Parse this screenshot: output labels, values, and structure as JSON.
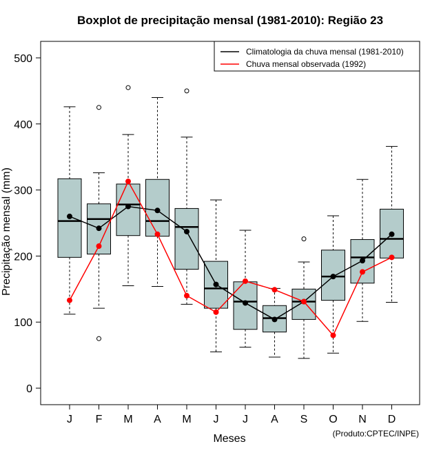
{
  "chart_data": {
    "type": "boxplot",
    "title": "Boxplot de precipitação mensal (1981-2010): Região 23",
    "xlabel": "Meses",
    "ylabel": "Precipitação mensal (mm)",
    "ylim": [
      -25,
      525
    ],
    "yticks": [
      0,
      100,
      200,
      300,
      400,
      500
    ],
    "categories": [
      "J",
      "F",
      "M",
      "A",
      "M",
      "J",
      "J",
      "A",
      "S",
      "O",
      "N",
      "D"
    ],
    "boxes": [
      {
        "whisker_low": 112,
        "q1": 198,
        "median": 253,
        "q3": 317,
        "whisker_high": 426,
        "outliers": []
      },
      {
        "whisker_low": 121,
        "q1": 203,
        "median": 256,
        "q3": 279,
        "whisker_high": 326,
        "outliers": [
          425,
          75
        ]
      },
      {
        "whisker_low": 155,
        "q1": 231,
        "median": 278,
        "q3": 309,
        "whisker_high": 384,
        "outliers": [
          455
        ]
      },
      {
        "whisker_low": 154,
        "q1": 230,
        "median": 253,
        "q3": 316,
        "whisker_high": 440,
        "outliers": []
      },
      {
        "whisker_low": 127,
        "q1": 180,
        "median": 244,
        "q3": 272,
        "whisker_high": 380,
        "outliers": [
          450
        ]
      },
      {
        "whisker_low": 55,
        "q1": 121,
        "median": 151,
        "q3": 192,
        "whisker_high": 285,
        "outliers": []
      },
      {
        "whisker_low": 62,
        "q1": 89,
        "median": 131,
        "q3": 161,
        "whisker_high": 239,
        "outliers": []
      },
      {
        "whisker_low": 47,
        "q1": 85,
        "median": 106,
        "q3": 125,
        "whisker_high": 151,
        "outliers": []
      },
      {
        "whisker_low": 45,
        "q1": 104,
        "median": 131,
        "q3": 150,
        "whisker_high": 191,
        "outliers": [
          226
        ]
      },
      {
        "whisker_low": 53,
        "q1": 133,
        "median": 169,
        "q3": 209,
        "whisker_high": 261,
        "outliers": []
      },
      {
        "whisker_low": 101,
        "q1": 159,
        "median": 198,
        "q3": 225,
        "whisker_high": 316,
        "outliers": []
      },
      {
        "whisker_low": 130,
        "q1": 197,
        "median": 226,
        "q3": 271,
        "whisker_high": 366,
        "outliers": []
      }
    ],
    "series": [
      {
        "name": "Climatologia da chuva mensal (1981-2010)",
        "color": "#000000",
        "values": [
          260,
          242,
          275,
          269,
          237,
          157,
          129,
          104,
          131,
          169,
          193,
          233
        ]
      },
      {
        "name": "Chuva mensal observada (1992)",
        "color": "#ff0000",
        "values": [
          133,
          215,
          313,
          233,
          140,
          115,
          162,
          149,
          131,
          80,
          176,
          198
        ]
      }
    ],
    "legend_position": "top-right",
    "box_fill": "#b4cccb",
    "credit": "(Produto:CPTEC/INPE)"
  }
}
